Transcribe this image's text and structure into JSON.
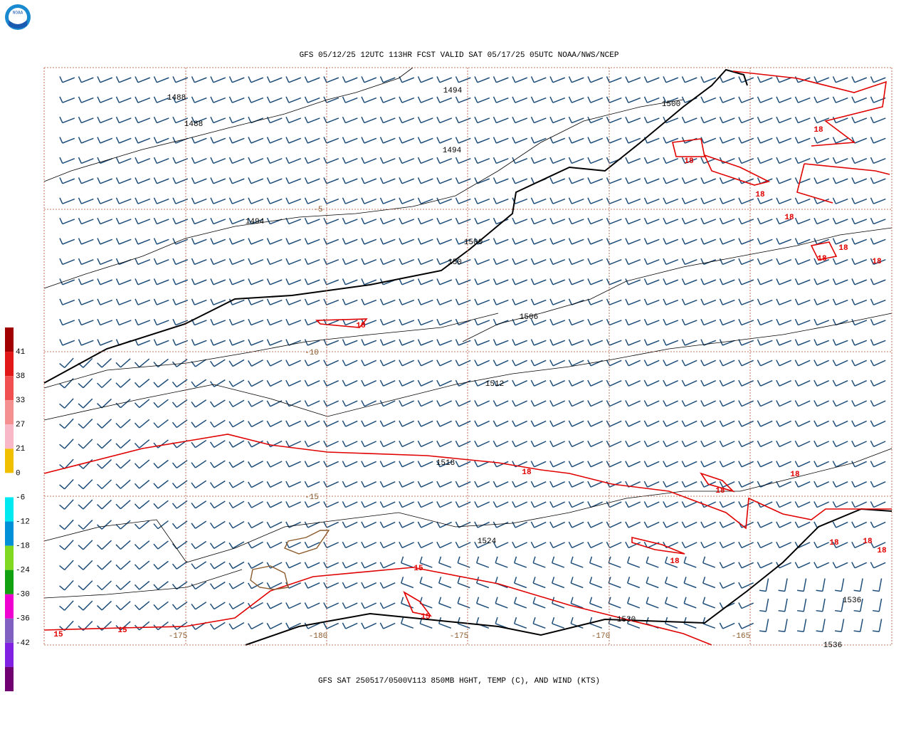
{
  "header": {
    "title": "GFS 05/12/25 12UTC 113HR FCST VALID SAT 05/17/25 05UTC NOAA/NWS/NCEP",
    "caption": "GFS SAT 250517/0500V113 850MB HGHT, TEMP (C), AND WIND (KTS)",
    "logo": "NOAA"
  },
  "colorbar": {
    "labels": [
      "41",
      "38",
      "33",
      "27",
      "21",
      "0",
      "-6",
      "-12",
      "-18",
      "-24",
      "-30",
      "-36",
      "-42"
    ],
    "colors": [
      "#a00000",
      "#e01818",
      "#f05050",
      "#f49090",
      "#f8b8c8",
      "#f0c000",
      "#ffffff",
      "#00e8f0",
      "#0090d8",
      "#80d820",
      "#10a010",
      "#f000d0",
      "#8060c0",
      "#8020e0",
      "#700070"
    ]
  },
  "height_labels": [
    "1488",
    "1488",
    "1494",
    "1500",
    "1494",
    "1494",
    "1500",
    "150",
    "1506",
    "1512",
    "1518",
    "1524",
    "1530",
    "1536",
    "1536"
  ],
  "temp_labels": [
    "18",
    "18",
    "18",
    "18",
    "18",
    "18",
    "18",
    "18",
    "18",
    "18",
    "18",
    "18",
    "18",
    "18",
    "18",
    "15",
    "15",
    "15",
    "15"
  ],
  "grid_labels": [
    "-5",
    "-10",
    "-15",
    "-175",
    "-180",
    "-175",
    "-170",
    "-165"
  ]
}
